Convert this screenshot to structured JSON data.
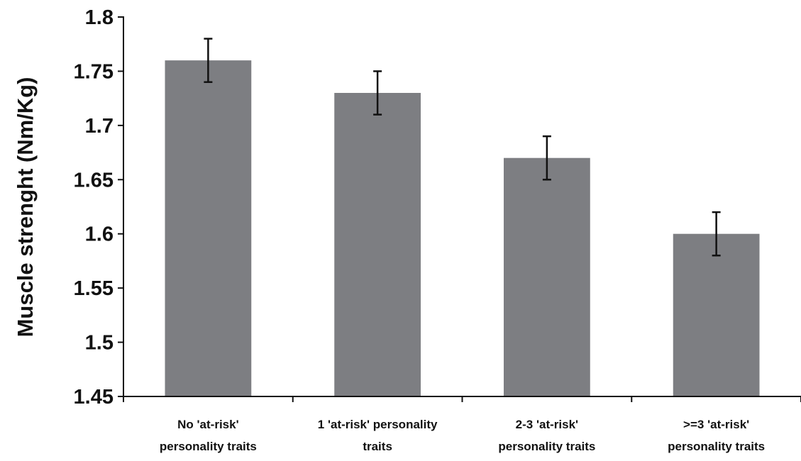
{
  "chart_data": {
    "type": "bar",
    "title": "",
    "xlabel": "",
    "ylabel": "Muscle strenght (Nm/Kg)",
    "ylim": [
      1.45,
      1.8
    ],
    "yticks": [
      "1.45",
      "1.5",
      "1.55",
      "1.6",
      "1.65",
      "1.7",
      "1.75",
      "1.8"
    ],
    "categories": [
      [
        "No 'at-risk'",
        "personality traits"
      ],
      [
        "1 'at-risk' personality",
        "traits"
      ],
      [
        "2-3 'at-risk'",
        "personality traits"
      ],
      [
        ">=3 'at-risk'",
        "personality traits"
      ]
    ],
    "values": [
      1.76,
      1.73,
      1.67,
      1.6
    ],
    "error_bars": [
      0.02,
      0.02,
      0.02,
      0.02
    ],
    "grid": false,
    "bar_color": "#7d7e82",
    "error_bar_color": "#111111",
    "axis_color": "#111111"
  }
}
